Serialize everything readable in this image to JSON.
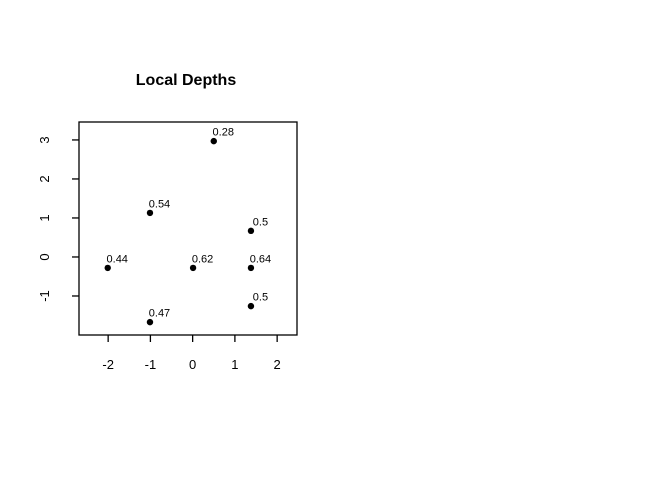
{
  "chart_data": {
    "type": "scatter",
    "title": "Local Depths",
    "xlabel": "",
    "ylabel": "",
    "xlim": [
      -2.69,
      2.47
    ],
    "ylim": [
      -2.0,
      3.46
    ],
    "x_ticks": [
      "-2",
      "-1",
      "0",
      "1",
      "2"
    ],
    "x_tick_values": [
      -2,
      -1,
      0,
      1,
      2
    ],
    "y_ticks": [
      "-1",
      "0",
      "1",
      "2",
      "3"
    ],
    "y_tick_values": [
      -1,
      0,
      1,
      2,
      3
    ],
    "grid": false,
    "legend": null,
    "background_color": "#ffffff",
    "axis_color": "#000000",
    "point_color": "#000000",
    "points": [
      {
        "x": 0.5,
        "y": 2.97,
        "label": "0.28"
      },
      {
        "x": -1.01,
        "y": 1.13,
        "label": "0.54"
      },
      {
        "x": 1.38,
        "y": 0.67,
        "label": "0.5"
      },
      {
        "x": -2.01,
        "y": -0.28,
        "label": "0.44"
      },
      {
        "x": 0.01,
        "y": -0.28,
        "label": "0.62"
      },
      {
        "x": 1.38,
        "y": -0.28,
        "label": "0.64"
      },
      {
        "x": 1.38,
        "y": -1.26,
        "label": "0.5"
      },
      {
        "x": -1.01,
        "y": -1.67,
        "label": "0.47"
      }
    ]
  }
}
